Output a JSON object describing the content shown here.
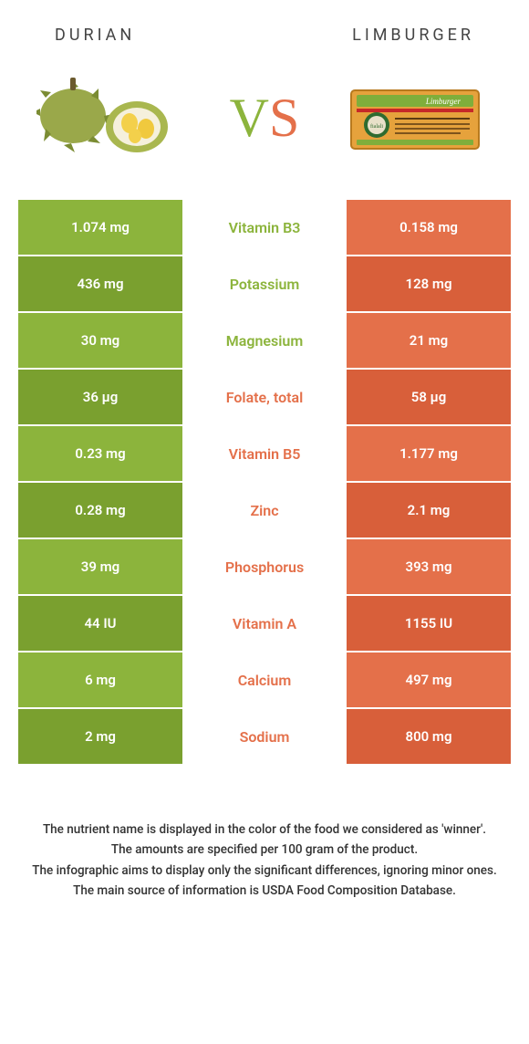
{
  "colors": {
    "left_food": "#8cb43c",
    "right_food": "#e4704a",
    "left_food_darker": "#7aa02f",
    "right_food_darker": "#d85f3a"
  },
  "header": {
    "left_title": "Durian",
    "right_title": "Limburger"
  },
  "vs": {
    "v": "V",
    "s": "S"
  },
  "rows": [
    {
      "nutrient": "Vitamin B3",
      "left": "1.074 mg",
      "right": "0.158 mg",
      "winner": "left"
    },
    {
      "nutrient": "Potassium",
      "left": "436 mg",
      "right": "128 mg",
      "winner": "left"
    },
    {
      "nutrient": "Magnesium",
      "left": "30 mg",
      "right": "21 mg",
      "winner": "left"
    },
    {
      "nutrient": "Folate, total",
      "left": "36 µg",
      "right": "58 µg",
      "winner": "right"
    },
    {
      "nutrient": "Vitamin B5",
      "left": "0.23 mg",
      "right": "1.177 mg",
      "winner": "right"
    },
    {
      "nutrient": "Zinc",
      "left": "0.28 mg",
      "right": "2.1 mg",
      "winner": "right"
    },
    {
      "nutrient": "Phosphorus",
      "left": "39 mg",
      "right": "393 mg",
      "winner": "right"
    },
    {
      "nutrient": "Vitamin A",
      "left": "44 IU",
      "right": "1155 IU",
      "winner": "right"
    },
    {
      "nutrient": "Calcium",
      "left": "6 mg",
      "right": "497 mg",
      "winner": "right"
    },
    {
      "nutrient": "Sodium",
      "left": "2 mg",
      "right": "800 mg",
      "winner": "right"
    }
  ],
  "footer": [
    "The nutrient name is displayed in the color of the food we considered as 'winner'.",
    "The amounts are specified per 100 gram of the product.",
    "The infographic aims to display only the significant differences, ignoring minor ones.",
    "The main source of information is USDA Food Composition Database."
  ]
}
